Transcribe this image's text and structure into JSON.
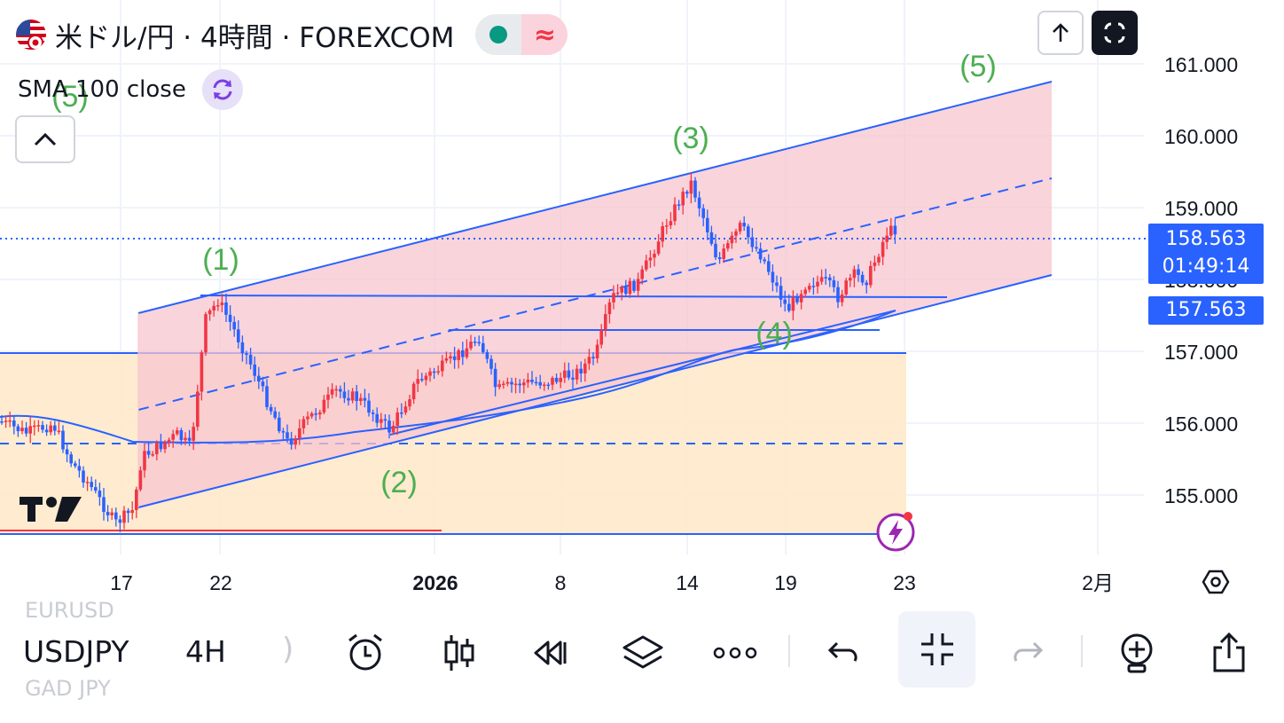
{
  "header": {
    "title": "米ドル/円 · 4時間 · FOREXCOM",
    "market_status": "open",
    "waves_icon": "≈"
  },
  "indicator": {
    "label": "SMA 100 close"
  },
  "price_axis": {
    "ticks": [
      "161.000",
      "160.000",
      "159.000",
      "158.000",
      "157.000",
      "156.000",
      "155.000"
    ],
    "current_price": "158.563",
    "countdown": "01:49:14",
    "alert_price": "157.563"
  },
  "time_axis": {
    "ticks": [
      "17",
      "22",
      "2026",
      "8",
      "14",
      "19",
      "23",
      "2月"
    ]
  },
  "wave_labels": [
    "(5)",
    "(1)",
    "(2)",
    "(3)",
    "(4)",
    "(5)"
  ],
  "chart_data": {
    "type": "candlestick",
    "symbol": "USDJPY",
    "interval": "4H",
    "indicator": "SMA 100 close",
    "y_range": [
      154.4,
      161.2
    ],
    "current_price": 158.563,
    "alert_price": 157.563,
    "swing_points": [
      {
        "label": "(1)",
        "price": 157.7
      },
      {
        "label": "(2)",
        "price": 155.7
      },
      {
        "label": "(3)",
        "price": 159.45
      },
      {
        "label": "(4)",
        "price": 157.35
      },
      {
        "label": "(5)",
        "price": 160.8
      }
    ],
    "colors": {
      "up": "#f23645",
      "down": "#2962ff",
      "channel": "#2962ff",
      "channel_fill": "#f7c6cf",
      "range_fill": "#ffe7c7",
      "wave_label": "#4caf50"
    }
  },
  "toolbar": {
    "symbol": "USDJPY",
    "timeframe": "4H",
    "ghost_above": "EURUSD",
    "ghost_below": "GAD JPY",
    "buttons": [
      "alarm-clock",
      "candles",
      "replay",
      "layers",
      "more",
      "undo",
      "exit-fullscreen",
      "redo",
      "add-alert",
      "share"
    ]
  },
  "logo": "TV"
}
